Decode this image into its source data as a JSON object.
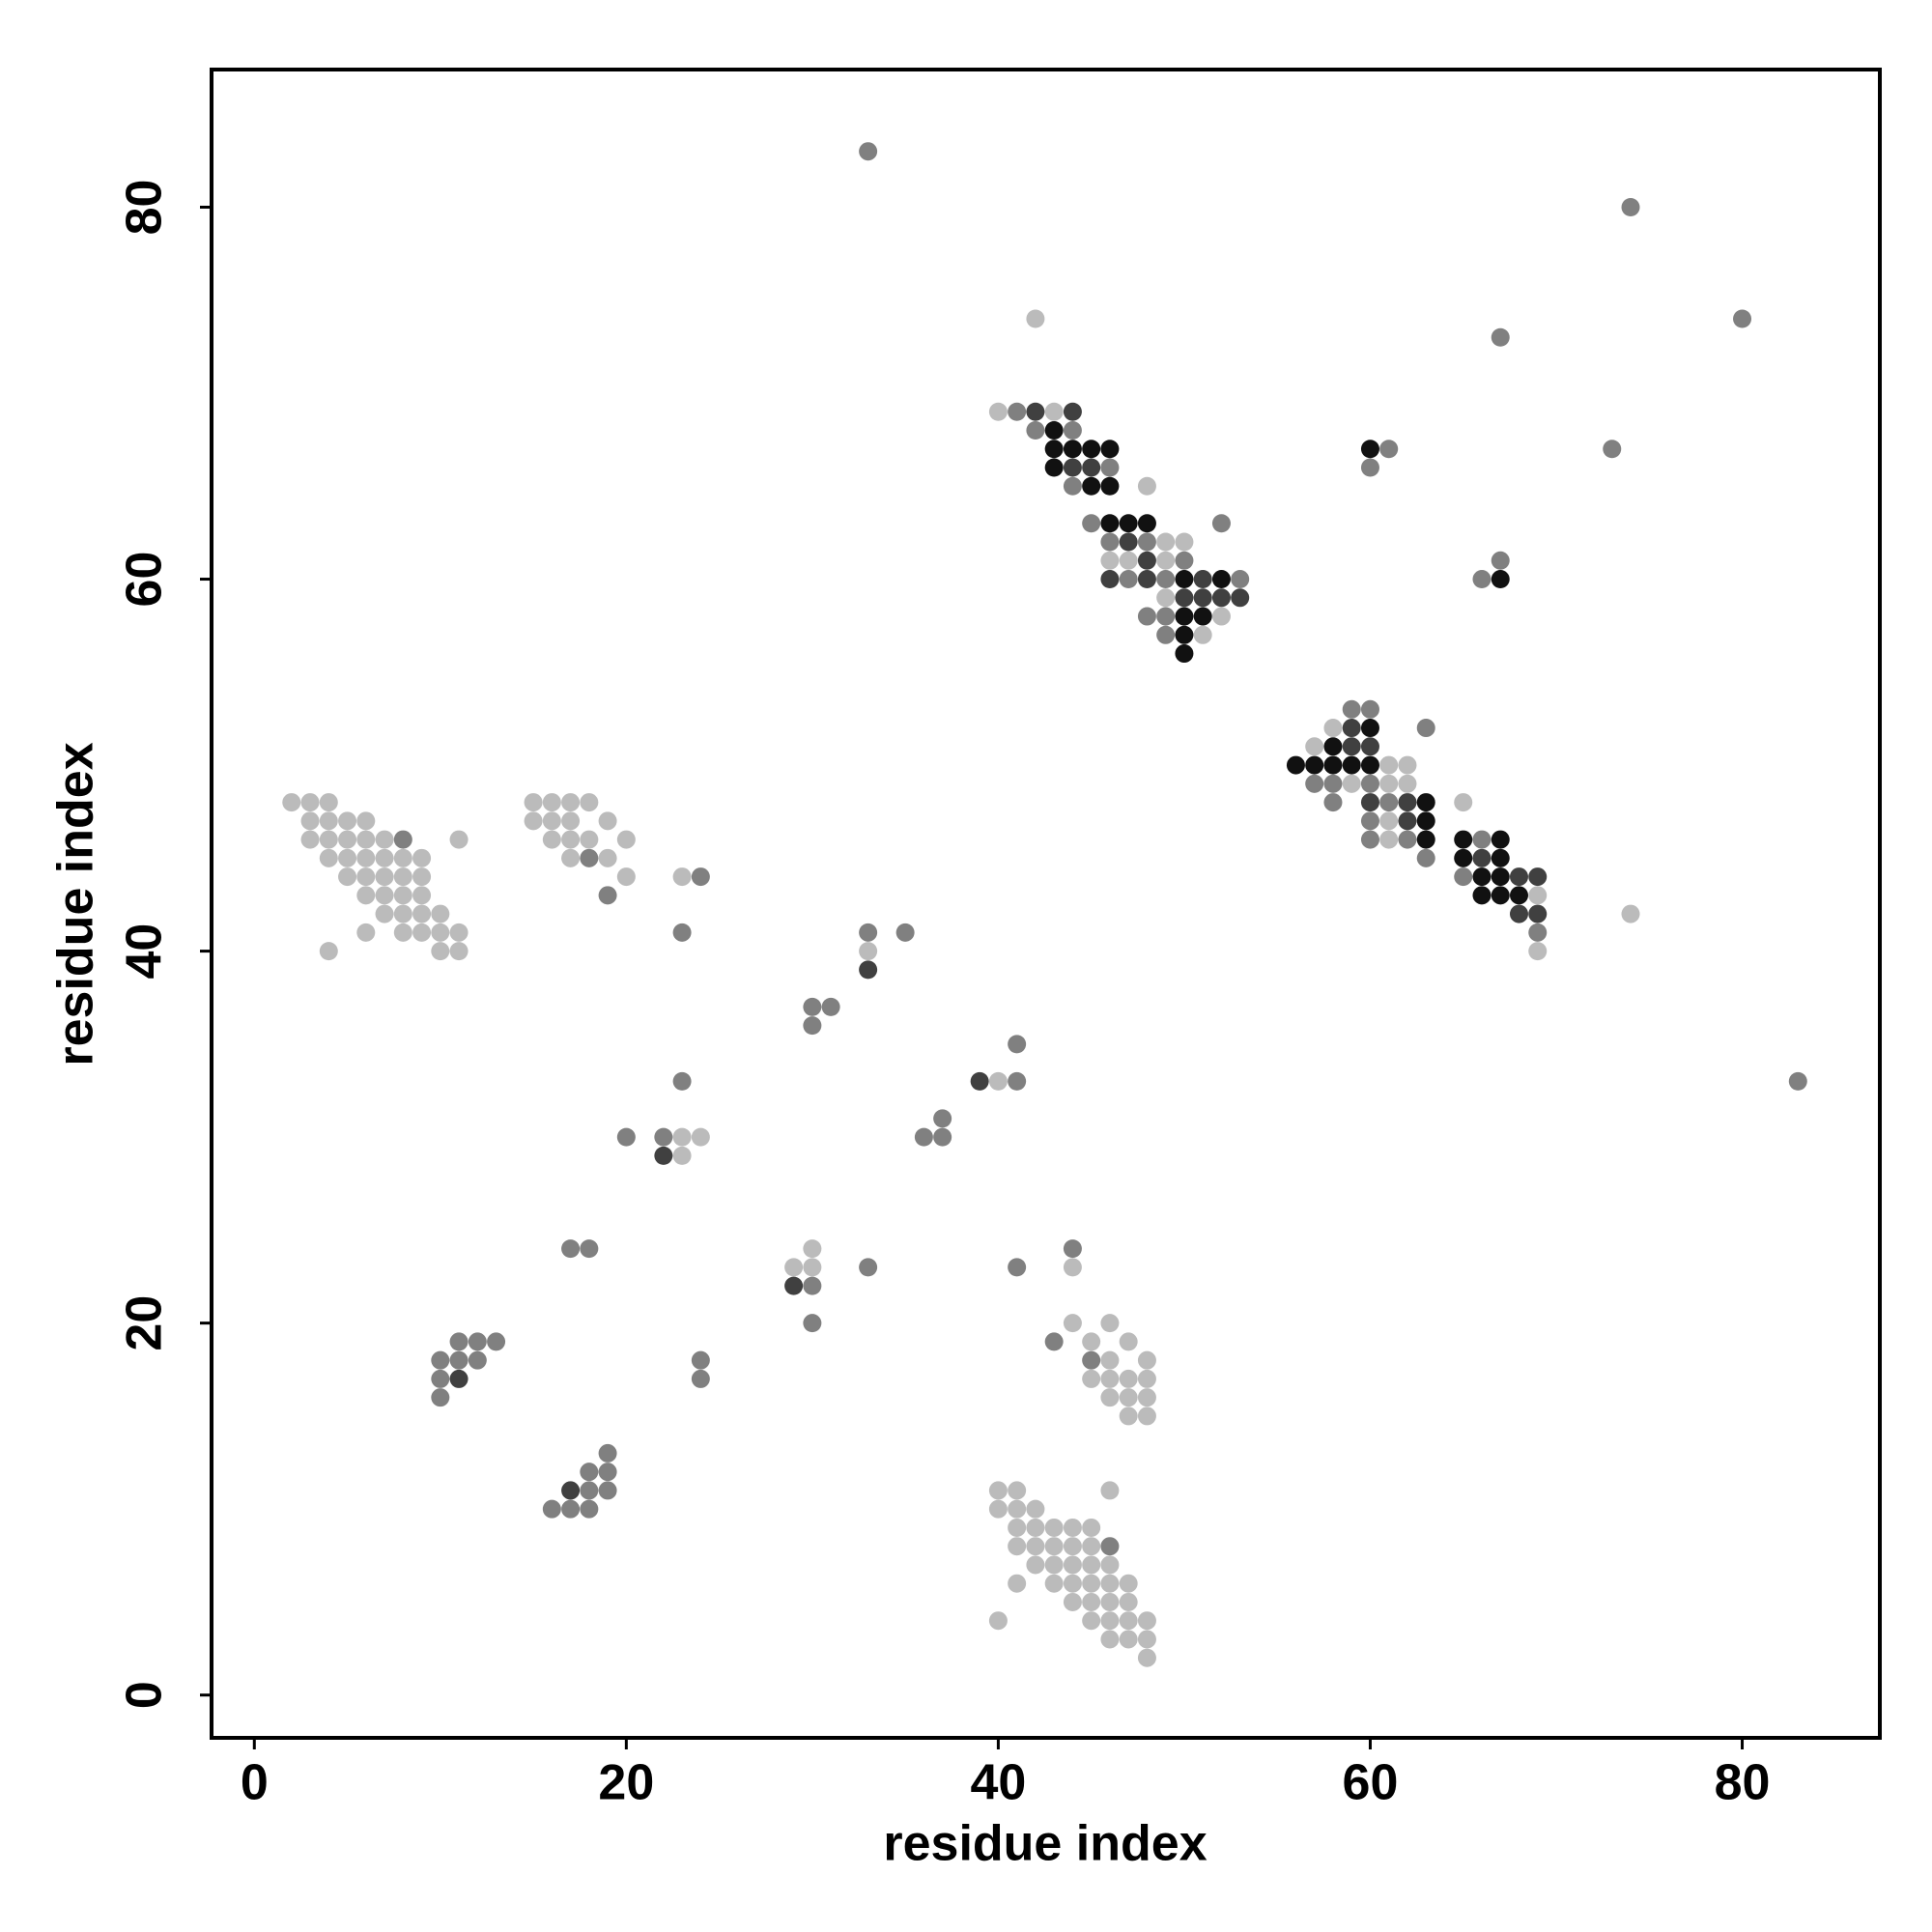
{
  "chart_data": {
    "type": "scatter",
    "xlabel": "residue index",
    "ylabel": "residue index",
    "xlim": [
      -2.3,
      87.4
    ],
    "ylim": [
      -2.3,
      87.4
    ],
    "xticks": [
      0,
      20,
      40,
      60,
      80
    ],
    "yticks": [
      0,
      20,
      40,
      60,
      80
    ],
    "grid": false,
    "series": [
      {
        "color": "#bbbbbb",
        "x": [
          42,
          74,
          40,
          43,
          48,
          49,
          50,
          46,
          47,
          49,
          49,
          52,
          51,
          58,
          57,
          61,
          62,
          59,
          61,
          62,
          65,
          61,
          61,
          69,
          69,
          2,
          3,
          4,
          15,
          16,
          17,
          18,
          3,
          4,
          5,
          6,
          15,
          16,
          17,
          19,
          3,
          4,
          5,
          6,
          7,
          11,
          16,
          17,
          18,
          20,
          4,
          5,
          6,
          7,
          8,
          9,
          17,
          19,
          5,
          6,
          7,
          8,
          9,
          20,
          23,
          6,
          7,
          8,
          9,
          7,
          8,
          9,
          10,
          6,
          8,
          9,
          10,
          11,
          4,
          10,
          11,
          33,
          40,
          23,
          24,
          23,
          30,
          29,
          30,
          44,
          44,
          46,
          45,
          47,
          46,
          48,
          45,
          46,
          47,
          48,
          46,
          47,
          48,
          47,
          48,
          40,
          41,
          46,
          40,
          41,
          42,
          41,
          42,
          43,
          44,
          45,
          41,
          42,
          43,
          44,
          45,
          42,
          43,
          44,
          45,
          46,
          41,
          43,
          44,
          45,
          46,
          47,
          44,
          45,
          46,
          47,
          40,
          45,
          46,
          47,
          48,
          46,
          47,
          48,
          48
        ],
        "values": [
          74,
          42,
          69,
          69,
          65,
          62,
          62,
          61,
          61,
          61,
          59,
          58,
          57,
          52,
          51,
          50,
          50,
          49,
          49,
          49,
          48,
          47,
          46,
          43,
          40,
          48,
          48,
          48,
          48,
          48,
          48,
          48,
          47,
          47,
          47,
          47,
          47,
          47,
          47,
          47,
          46,
          46,
          46,
          46,
          46,
          46,
          46,
          46,
          46,
          46,
          45,
          45,
          45,
          45,
          45,
          45,
          45,
          45,
          44,
          44,
          44,
          44,
          44,
          44,
          44,
          43,
          43,
          43,
          43,
          42,
          42,
          42,
          42,
          41,
          41,
          41,
          41,
          41,
          40,
          40,
          40,
          40,
          33,
          30,
          30,
          29,
          24,
          23,
          23,
          23,
          20,
          20,
          19,
          19,
          18,
          18,
          17,
          17,
          17,
          17,
          16,
          16,
          16,
          15,
          15,
          11,
          11,
          11,
          10,
          10,
          10,
          9,
          9,
          9,
          9,
          9,
          8,
          8,
          8,
          8,
          8,
          7,
          7,
          7,
          7,
          7,
          6,
          6,
          6,
          6,
          6,
          6,
          5,
          5,
          5,
          5,
          4,
          4,
          4,
          4,
          4,
          3,
          3,
          3,
          2
        ]
      },
      {
        "color": "#808080",
        "x": [
          33,
          74,
          80,
          67,
          73,
          83,
          41,
          42,
          44,
          46,
          61,
          60,
          44,
          45,
          52,
          46,
          48,
          50,
          67,
          47,
          49,
          53,
          66,
          48,
          49,
          49,
          59,
          60,
          63,
          57,
          58,
          60,
          58,
          61,
          60,
          60,
          62,
          66,
          63,
          65,
          69,
          8,
          18,
          24,
          19,
          23,
          33,
          35,
          30,
          31,
          30,
          41,
          23,
          41,
          37,
          20,
          22,
          36,
          37,
          17,
          18,
          44,
          33,
          41,
          30,
          30,
          11,
          12,
          13,
          43,
          10,
          11,
          12,
          24,
          45,
          10,
          24,
          10,
          19,
          18,
          19,
          18,
          19,
          16,
          17,
          18,
          46
        ],
        "values": [
          83,
          80,
          74,
          73,
          67,
          33,
          69,
          68,
          68,
          66,
          67,
          66,
          65,
          63,
          63,
          62,
          62,
          61,
          61,
          60,
          60,
          60,
          60,
          58,
          58,
          57,
          53,
          53,
          52,
          49,
          49,
          49,
          48,
          48,
          47,
          46,
          46,
          46,
          45,
          44,
          41,
          46,
          45,
          44,
          43,
          41,
          41,
          41,
          37,
          37,
          36,
          35,
          33,
          33,
          31,
          30,
          30,
          30,
          30,
          24,
          24,
          24,
          23,
          23,
          22,
          20,
          19,
          19,
          19,
          19,
          18,
          18,
          18,
          18,
          18,
          17,
          17,
          16,
          13,
          12,
          12,
          11,
          11,
          10,
          10,
          10,
          8
        ]
      },
      {
        "color": "#404040",
        "x": [
          42,
          44,
          44,
          45,
          47,
          48,
          46,
          48,
          51,
          50,
          51,
          52,
          53,
          59,
          59,
          60,
          60,
          62,
          62,
          66,
          68,
          69,
          68,
          69,
          33,
          39,
          22,
          29,
          11,
          17
        ],
        "values": [
          69,
          69,
          66,
          66,
          62,
          61,
          60,
          60,
          60,
          59,
          59,
          59,
          59,
          52,
          51,
          51,
          48,
          48,
          47,
          45,
          44,
          44,
          42,
          42,
          39,
          33,
          29,
          22,
          17,
          11
        ]
      },
      {
        "color": "#111111",
        "x": [
          43,
          43,
          44,
          45,
          46,
          60,
          43,
          45,
          46,
          46,
          47,
          48,
          50,
          52,
          67,
          50,
          51,
          50,
          50,
          60,
          58,
          56,
          57,
          58,
          59,
          60,
          63,
          63,
          63,
          65,
          67,
          65,
          67,
          66,
          67,
          66,
          67,
          68
        ],
        "values": [
          68,
          67,
          67,
          67,
          67,
          67,
          66,
          65,
          65,
          63,
          63,
          63,
          60,
          60,
          60,
          58,
          58,
          57,
          56,
          52,
          51,
          50,
          50,
          50,
          50,
          50,
          48,
          47,
          46,
          46,
          46,
          45,
          45,
          44,
          44,
          43,
          43,
          43
        ]
      }
    ]
  }
}
